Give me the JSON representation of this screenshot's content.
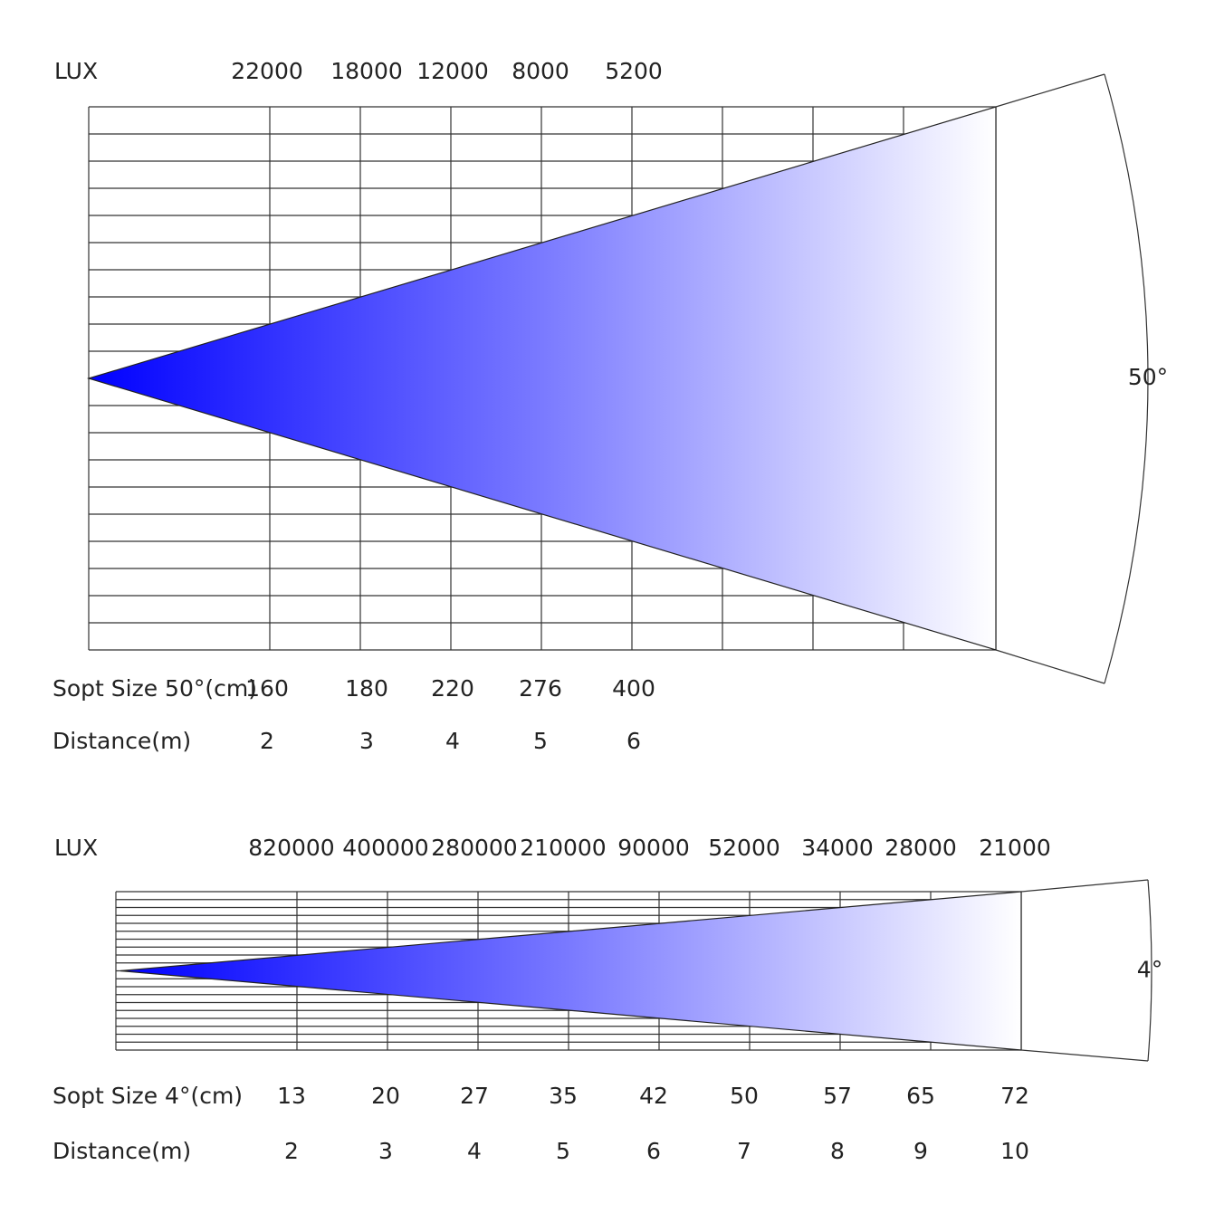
{
  "diagrams": [
    {
      "lux_label": "LUX",
      "lux": [
        "22000",
        "18000",
        "12000",
        "8000",
        "5200"
      ],
      "angle_label": "50°",
      "spot_label": "Sopt Size 50°(cm)",
      "spot": [
        "160",
        "180",
        "220",
        "276",
        "400"
      ],
      "distance_label": "Distance(m)",
      "distance": [
        "2",
        "3",
        "4",
        "5",
        "6"
      ]
    },
    {
      "lux_label": "LUX",
      "lux": [
        "820000",
        "400000",
        "280000",
        "210000",
        "90000",
        "52000",
        "34000",
        "28000",
        "21000"
      ],
      "angle_label": "4°",
      "spot_label": "Sopt Size 4°(cm)",
      "spot": [
        "13",
        "20",
        "27",
        "35",
        "42",
        "50",
        "57",
        "65",
        "72"
      ],
      "distance_label": "Distance(m)",
      "distance": [
        "2",
        "3",
        "4",
        "5",
        "6",
        "7",
        "8",
        "9",
        "10"
      ]
    }
  ]
}
